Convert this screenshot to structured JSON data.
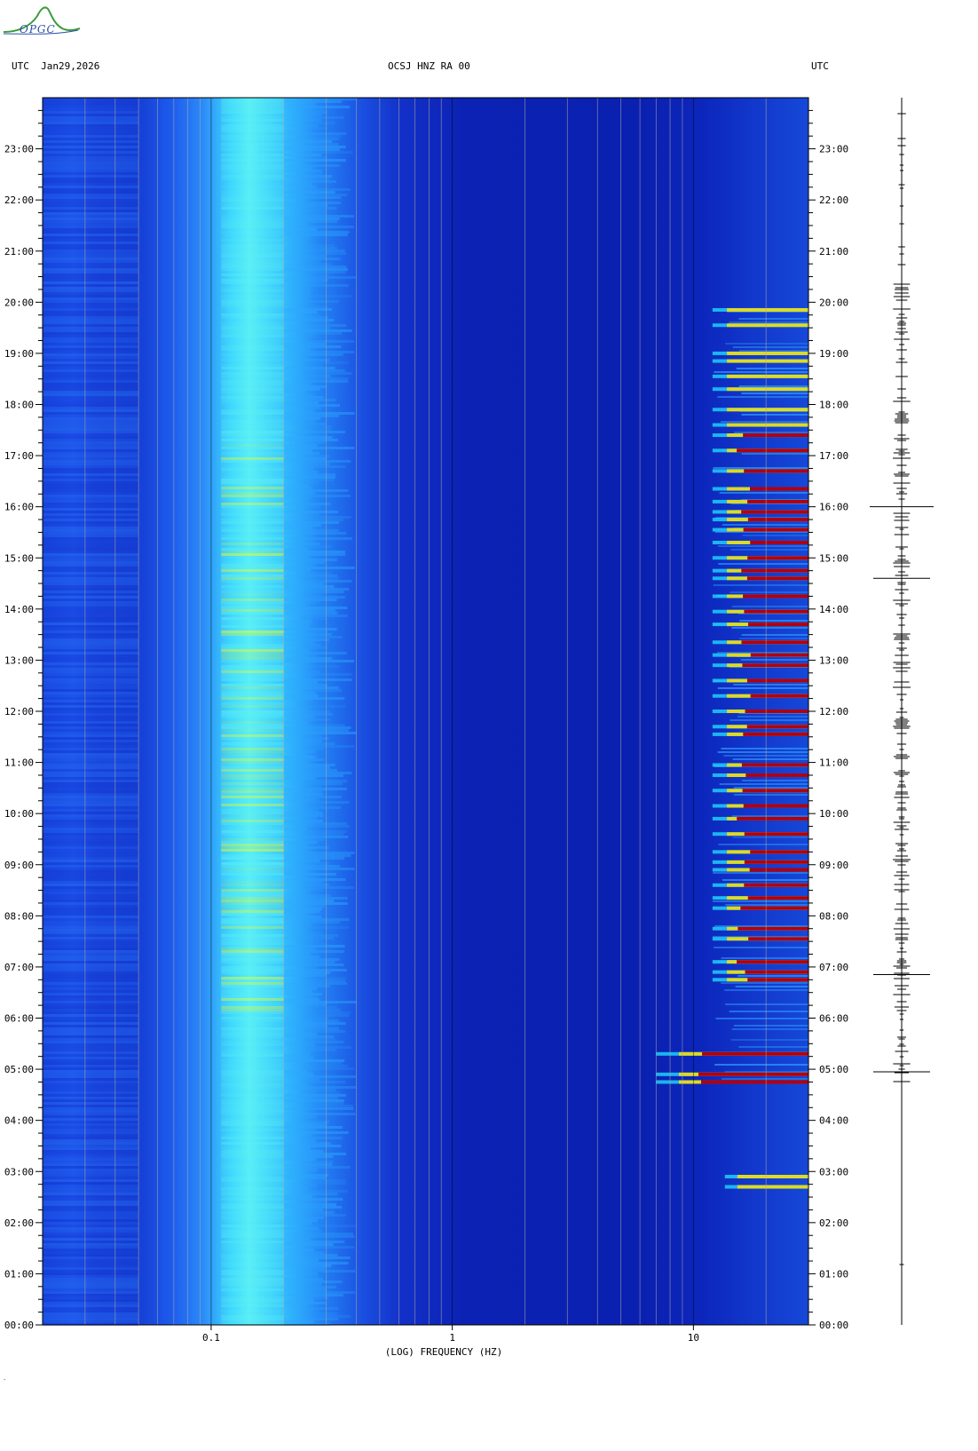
{
  "header": {
    "left": "UTC  Jan29,2026",
    "center": "OCSJ HNZ RA 00",
    "right": "UTC"
  },
  "logo": {
    "text": "OPGC"
  },
  "colors": {
    "background": "#0a1fb0",
    "low_band": "#1a50e6",
    "mid_band": "#38d8ff",
    "peak": "#f0ff20",
    "event_red": "#b00010",
    "event_yellow": "#ffe000",
    "grid_line": "#b0a8a0"
  },
  "chart_data": {
    "type": "heatmap",
    "title": "OCSJ HNZ RA 00",
    "xlabel": "(LOG) FREQUENCY (HZ)",
    "ylabel": "UTC",
    "x_scale": "log",
    "xlim": [
      0.02,
      30
    ],
    "x_tick_labels": [
      "0.1",
      "1",
      "10"
    ],
    "x_tick_values": [
      0.1,
      1,
      10
    ],
    "x_gridlines": [
      0.03,
      0.04,
      0.05,
      0.06,
      0.07,
      0.08,
      0.09,
      0.1,
      0.2,
      0.3,
      0.4,
      0.5,
      0.6,
      0.7,
      0.8,
      0.9,
      1,
      2,
      3,
      4,
      5,
      6,
      7,
      8,
      9,
      10,
      20
    ],
    "y_tick_labels": [
      "00:00",
      "01:00",
      "02:00",
      "03:00",
      "04:00",
      "05:00",
      "06:00",
      "07:00",
      "08:00",
      "09:00",
      "10:00",
      "11:00",
      "12:00",
      "13:00",
      "14:00",
      "15:00",
      "16:00",
      "17:00",
      "18:00",
      "19:00",
      "20:00",
      "21:00",
      "22:00",
      "23:00"
    ],
    "ylim_hours": [
      0,
      24
    ],
    "dominant_band_hz": [
      0.11,
      0.2
    ],
    "event_band_hz": [
      7,
      30
    ],
    "activity_window_hours": [
      4.7,
      20.0
    ],
    "events_hours": [
      2.7,
      2.9,
      4.75,
      4.9,
      5.3,
      6.75,
      6.9,
      7.1,
      7.55,
      7.75,
      8.15,
      8.35,
      8.6,
      8.9,
      9.05,
      9.25,
      9.6,
      9.9,
      10.15,
      10.45,
      10.75,
      10.95,
      11.55,
      11.7,
      12.0,
      12.3,
      12.6,
      12.9,
      13.1,
      13.35,
      13.7,
      13.95,
      14.25,
      14.6,
      14.75,
      15.0,
      15.3,
      15.55,
      15.75,
      15.9,
      16.1,
      16.35,
      16.7,
      17.1,
      17.4,
      17.6,
      17.9,
      18.3,
      18.55,
      18.85,
      19.0,
      19.55,
      19.85
    ]
  },
  "trace": {
    "large_events_hours": [
      4.95,
      6.85,
      14.6,
      16.0
    ]
  }
}
